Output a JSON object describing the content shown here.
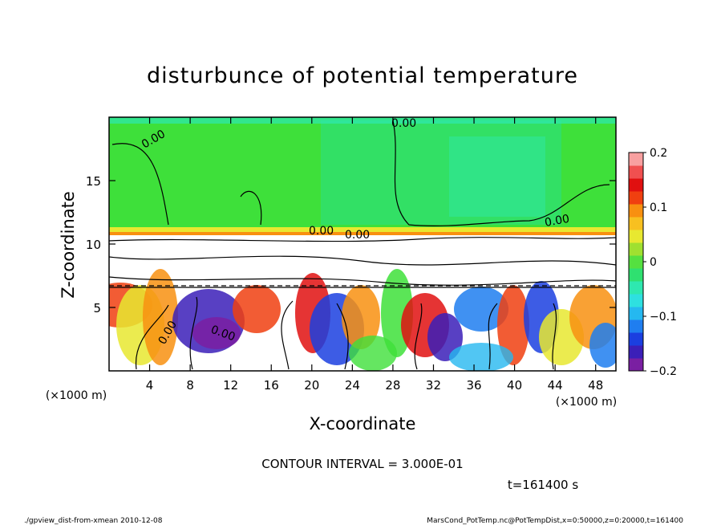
{
  "chart_data": {
    "type": "heatmap",
    "title": "disturbunce of potential temperature",
    "xlabel": "X-coordinate",
    "ylabel": "Z-coordinate",
    "x_unit_label_left": "(×1000 m)",
    "x_unit_label_right": "(×1000 m)",
    "xlim": [
      0,
      50
    ],
    "ylim": [
      0,
      20
    ],
    "x_ticks": [
      4,
      8,
      12,
      16,
      20,
      24,
      28,
      32,
      36,
      40,
      44,
      48
    ],
    "y_ticks": [
      5,
      10,
      15
    ],
    "colorbar": {
      "range": [
        -0.2,
        0.2
      ],
      "tick_values": [
        0.2,
        0.1,
        0,
        -0.1,
        -0.2
      ],
      "tick_labels": [
        "0.2",
        "0.1",
        "0",
        "−0.1",
        "−0.2"
      ],
      "colors": [
        "#7a1fa2",
        "#3b1fb8",
        "#1b3fe0",
        "#1f7ef0",
        "#25b8f0",
        "#2ee0e0",
        "#2ee8b0",
        "#2fe070",
        "#55e040",
        "#a0e030",
        "#e8e830",
        "#f8c020",
        "#f89010",
        "#f04010",
        "#e01010",
        "#f05050",
        "#f8a0a0"
      ]
    },
    "contour_labels": [
      "0.00",
      "0.00",
      "0.00",
      "0.00",
      "0.00",
      "0.00",
      "0.00"
    ],
    "contour_interval_text": "CONTOUR INTERVAL = 3.000E-01",
    "time_text": "t=161400 s"
  },
  "footer": {
    "left": "./gpview_dist-from-xmean  2010-12-08",
    "right": "MarsCond_PotTemp.nc@PotTempDist,x=0:50000,z=0:20000,t=161400"
  }
}
